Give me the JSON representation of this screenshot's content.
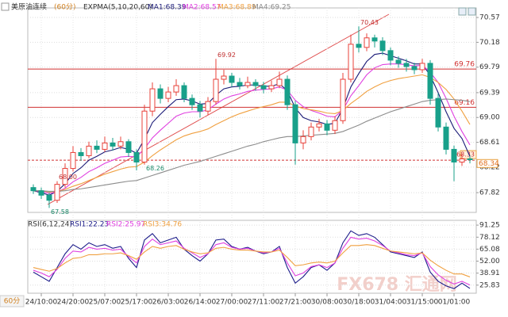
{
  "chart_data": [
    {
      "type": "candlestick",
      "title": "美原油连续",
      "subtitle": "(60分)",
      "indicator": "EXPMA(5,10,20,60)",
      "period_button": "60分",
      "watermark": "FX678 汇通网",
      "up_color": "#e8413a",
      "down_color": "#18a08a",
      "grid": true,
      "categories": [
        null,
        "24/10:00",
        null,
        null,
        null,
        "24/20:00",
        null,
        null,
        null,
        "25/07:00",
        null,
        null,
        null,
        "25/17:00",
        null,
        null,
        null,
        "26/03:00",
        null,
        null,
        null,
        "26/14:00",
        null,
        null,
        null,
        "27/00:00",
        null,
        null,
        null,
        "27/11:00",
        null,
        null,
        null,
        "27/21:00",
        null,
        null,
        null,
        "30/08:00",
        null,
        null,
        null,
        "30/18:00",
        null,
        null,
        null,
        "31/04:00",
        null,
        null,
        null,
        "31/15:00",
        null,
        null,
        null,
        "01/01:00",
        null,
        null
      ],
      "ohlc": [
        [
          67.9,
          67.95,
          67.8,
          67.85
        ],
        [
          67.85,
          67.9,
          67.72,
          67.78
        ],
        [
          67.78,
          67.82,
          67.58,
          67.7
        ],
        [
          67.7,
          68.0,
          67.66,
          67.95
        ],
        [
          67.95,
          68.28,
          67.9,
          68.2
        ],
        [
          68.2,
          68.55,
          68.15,
          68.45
        ],
        [
          68.45,
          68.52,
          68.32,
          68.4
        ],
        [
          68.4,
          68.62,
          68.36,
          68.55
        ],
        [
          68.55,
          68.64,
          68.44,
          68.5
        ],
        [
          68.5,
          68.7,
          68.46,
          68.6
        ],
        [
          68.6,
          68.68,
          68.48,
          68.55
        ],
        [
          68.55,
          68.7,
          68.5,
          68.62
        ],
        [
          68.62,
          68.66,
          68.38,
          68.45
        ],
        [
          68.45,
          68.5,
          68.17,
          68.3
        ],
        [
          68.3,
          69.2,
          68.26,
          69.1
        ],
        [
          69.1,
          69.55,
          69.02,
          69.45
        ],
        [
          69.45,
          69.52,
          69.22,
          69.3
        ],
        [
          69.3,
          69.48,
          69.24,
          69.4
        ],
        [
          69.4,
          69.6,
          69.34,
          69.5
        ],
        [
          69.5,
          69.55,
          69.24,
          69.3
        ],
        [
          69.3,
          69.36,
          69.12,
          69.2
        ],
        [
          69.2,
          69.26,
          69.0,
          69.1
        ],
        [
          69.1,
          69.32,
          69.04,
          69.25
        ],
        [
          69.25,
          69.92,
          69.2,
          69.6
        ],
        [
          69.6,
          69.75,
          69.52,
          69.65
        ],
        [
          69.65,
          69.7,
          69.48,
          69.55
        ],
        [
          69.55,
          69.62,
          69.44,
          69.5
        ],
        [
          69.5,
          69.64,
          69.46,
          69.55
        ],
        [
          69.55,
          69.6,
          69.42,
          69.5
        ],
        [
          69.5,
          69.56,
          69.38,
          69.45
        ],
        [
          69.45,
          69.58,
          69.4,
          69.5
        ],
        [
          69.5,
          69.72,
          69.46,
          69.6
        ],
        [
          69.6,
          69.66,
          69.12,
          69.2
        ],
        [
          69.2,
          69.26,
          68.26,
          68.6
        ],
        [
          68.6,
          68.8,
          68.5,
          68.7
        ],
        [
          68.7,
          68.92,
          68.64,
          68.85
        ],
        [
          68.85,
          68.98,
          68.78,
          68.9
        ],
        [
          68.9,
          68.96,
          68.72,
          68.8
        ],
        [
          68.8,
          69.02,
          68.74,
          68.95
        ],
        [
          68.95,
          69.7,
          68.9,
          69.6
        ],
        [
          69.6,
          70.3,
          69.55,
          70.15
        ],
        [
          70.15,
          70.43,
          70.02,
          70.1
        ],
        [
          70.1,
          70.32,
          70.04,
          70.25
        ],
        [
          70.25,
          70.3,
          70.1,
          70.2
        ],
        [
          70.2,
          70.26,
          69.98,
          70.05
        ],
        [
          70.05,
          70.1,
          69.82,
          69.9
        ],
        [
          69.9,
          69.96,
          69.78,
          69.85
        ],
        [
          69.85,
          69.92,
          69.72,
          69.8
        ],
        [
          69.8,
          69.86,
          69.68,
          69.75
        ],
        [
          69.75,
          69.92,
          69.7,
          69.85
        ],
        [
          69.85,
          69.9,
          69.2,
          69.3
        ],
        [
          69.3,
          69.38,
          68.78,
          68.85
        ],
        [
          68.85,
          68.92,
          68.42,
          68.5
        ],
        [
          68.5,
          68.56,
          68.0,
          68.3
        ],
        [
          68.3,
          68.42,
          68.24,
          68.35
        ],
        [
          68.35,
          68.4,
          68.28,
          68.34
        ]
      ],
      "series": [
        {
          "name": "MA1:68.39",
          "color": "#1c1c78",
          "values": [
            67.85,
            67.82,
            67.78,
            67.84,
            67.96,
            68.12,
            68.21,
            68.33,
            68.39,
            68.46,
            68.49,
            68.53,
            68.5,
            68.44,
            68.66,
            68.92,
            69.05,
            69.17,
            69.28,
            69.29,
            69.26,
            69.21,
            69.22,
            69.35,
            69.45,
            69.48,
            69.49,
            69.51,
            69.51,
            69.49,
            69.49,
            69.53,
            69.42,
            69.15,
            69.0,
            68.95,
            68.93,
            68.89,
            68.91,
            69.14,
            69.48,
            69.69,
            69.88,
            69.99,
            70.01,
            69.97,
            69.93,
            69.89,
            69.84,
            69.84,
            69.66,
            69.39,
            69.09,
            68.83,
            68.67,
            68.39
          ]
        },
        {
          "name": "MA2:68.57",
          "color": "#e040e0",
          "values": [
            67.85,
            67.84,
            67.81,
            67.83,
            67.89,
            67.99,
            68.06,
            68.15,
            68.21,
            68.28,
            68.33,
            68.38,
            68.39,
            68.38,
            68.51,
            68.68,
            68.8,
            68.91,
            69.02,
            69.07,
            69.09,
            69.09,
            69.12,
            69.21,
            69.29,
            69.34,
            69.37,
            69.41,
            69.43,
            69.44,
            69.45,
            69.48,
            69.43,
            69.27,
            69.17,
            69.11,
            69.07,
            69.02,
            69.01,
            69.12,
            69.34,
            69.5,
            69.67,
            69.78,
            69.83,
            69.84,
            69.84,
            69.83,
            69.81,
            69.82,
            69.71,
            69.55,
            69.3,
            69.02,
            68.78,
            68.57
          ]
        },
        {
          "name": "MA3:68.89",
          "color": "#f0a040",
          "values": [
            67.85,
            67.85,
            67.83,
            67.84,
            67.87,
            67.92,
            67.96,
            68.01,
            68.06,
            68.11,
            68.15,
            68.19,
            68.22,
            68.23,
            68.3,
            68.4,
            68.49,
            68.57,
            68.65,
            68.71,
            68.75,
            68.78,
            68.82,
            68.89,
            68.95,
            69.01,
            69.06,
            69.1,
            69.14,
            69.17,
            69.2,
            69.24,
            69.24,
            69.18,
            69.14,
            69.12,
            69.1,
            69.07,
            69.06,
            69.11,
            69.22,
            69.31,
            69.41,
            69.48,
            69.54,
            69.58,
            69.61,
            69.63,
            69.65,
            69.67,
            69.63,
            69.55,
            69.44,
            69.29,
            69.1,
            68.89
          ]
        },
        {
          "name": "MA4:69.25",
          "color": "#8c8c8c",
          "values": [
            67.85,
            67.85,
            67.84,
            67.84,
            67.85,
            67.87,
            67.88,
            67.9,
            67.92,
            67.94,
            67.96,
            67.98,
            68.0,
            68.01,
            68.05,
            68.09,
            68.13,
            68.17,
            68.21,
            68.25,
            68.28,
            68.31,
            68.35,
            68.39,
            68.43,
            68.47,
            68.51,
            68.55,
            68.58,
            68.62,
            68.65,
            68.68,
            68.7,
            68.7,
            68.71,
            68.72,
            68.73,
            68.74,
            68.75,
            68.78,
            68.83,
            68.88,
            68.94,
            68.99,
            69.04,
            69.09,
            69.13,
            69.17,
            69.21,
            69.25,
            69.27,
            69.28,
            69.29,
            69.28,
            69.27,
            69.25
          ]
        }
      ],
      "ylim": [
        67.51,
        70.72
      ],
      "yticks": [
        70.57,
        70.18,
        69.79,
        69.39,
        {
          "value": 69,
          "label": "69.00"
        },
        68.61,
        68.22,
        67.82
      ],
      "levels": [
        {
          "value": 69.76,
          "label": "69.76"
        },
        {
          "value": 69.16,
          "label": "69.16"
        }
      ],
      "current_level": {
        "value": 68.33,
        "label": "68.33"
      },
      "last_price": {
        "value": 68.34,
        "label": "68.34"
      },
      "extreme_labels": [
        {
          "value": 70.43,
          "label": "70.43"
        },
        {
          "value": 69.92,
          "label": "69.92"
        },
        {
          "value": 68.26,
          "label": "68.26"
        },
        {
          "value": 68,
          "label": "68.00"
        },
        {
          "value": 67.58,
          "label": "67.58"
        }
      ]
    },
    {
      "type": "line",
      "title": "RSI(6,12,24)",
      "grid": true,
      "series": [
        {
          "name": "RSI1:22.23",
          "color": "#1c1c8a",
          "values": [
            40,
            35,
            30,
            45,
            60,
            70,
            65,
            72,
            68,
            70,
            66,
            68,
            55,
            45,
            75,
            82,
            72,
            75,
            78,
            65,
            58,
            52,
            60,
            75,
            76,
            68,
            65,
            67,
            63,
            60,
            62,
            68,
            45,
            28,
            35,
            45,
            48,
            42,
            50,
            72,
            85,
            80,
            82,
            78,
            70,
            62,
            60,
            58,
            56,
            62,
            40,
            30,
            25,
            22,
            28,
            22.23
          ]
        },
        {
          "name": "RSI2:25.97",
          "color": "#e040e0",
          "values": [
            42,
            39,
            35,
            43,
            55,
            63,
            62,
            67,
            65,
            66,
            64,
            65,
            57,
            50,
            68,
            76,
            70,
            72,
            74,
            66,
            61,
            56,
            60,
            70,
            72,
            67,
            65,
            66,
            63,
            61,
            62,
            66,
            50,
            36,
            39,
            46,
            48,
            45,
            50,
            66,
            78,
            76,
            77,
            74,
            69,
            63,
            61,
            59,
            58,
            61,
            46,
            37,
            31,
            27,
            30,
            25.97
          ]
        },
        {
          "name": "RSI3:34.76",
          "color": "#f0a040",
          "values": [
            45,
            43,
            41,
            44,
            50,
            55,
            56,
            59,
            59,
            60,
            60,
            61,
            58,
            54,
            62,
            68,
            66,
            68,
            69,
            65,
            62,
            60,
            61,
            66,
            67,
            65,
            64,
            64,
            63,
            62,
            62,
            64,
            56,
            47,
            48,
            50,
            51,
            50,
            52,
            61,
            69,
            69,
            70,
            69,
            66,
            63,
            62,
            61,
            60,
            61,
            53,
            47,
            42,
            38,
            38,
            34.76
          ]
        }
      ],
      "ylim": [
        17,
        96.5
      ],
      "yticks": [
        91.25,
        78.12,
        65.08,
        {
          "value": 52,
          "label": "52.00"
        },
        38.91,
        25.83
      ]
    }
  ]
}
